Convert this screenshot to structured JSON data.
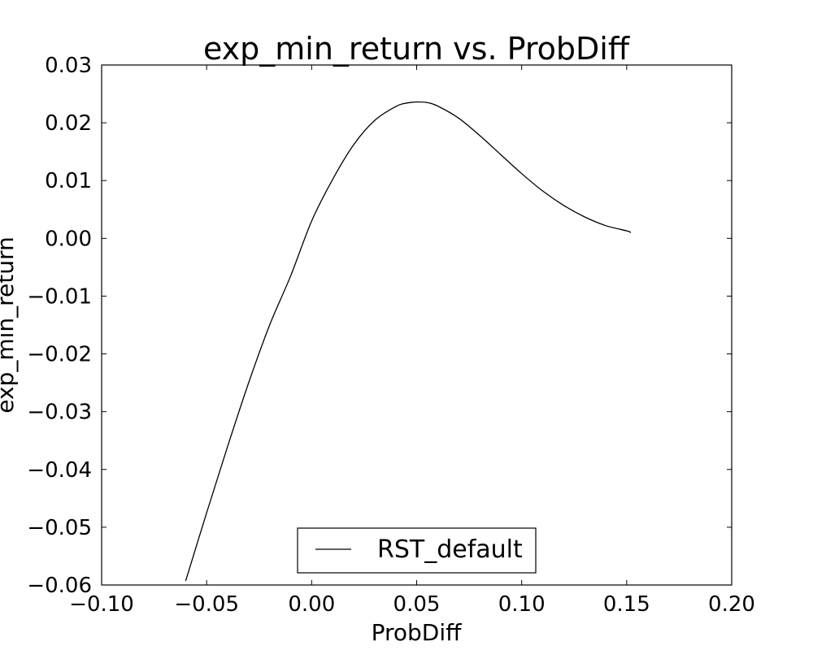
{
  "chart_data": {
    "type": "line",
    "title": "exp_min_return vs. ProbDiff",
    "xlabel": "ProbDiff",
    "ylabel": "exp_min_return",
    "xlim": [
      -0.1,
      0.2
    ],
    "ylim": [
      -0.06,
      0.03
    ],
    "x_ticks": [
      -0.1,
      -0.05,
      0.0,
      0.05,
      0.1,
      0.15,
      0.2
    ],
    "x_tick_labels": [
      "−0.10",
      "−0.05",
      "0.00",
      "0.05",
      "0.10",
      "0.15",
      "0.20"
    ],
    "y_ticks": [
      0.03,
      0.02,
      0.01,
      0.0,
      -0.01,
      -0.02,
      -0.03,
      -0.04,
      -0.05,
      -0.06
    ],
    "y_tick_labels": [
      "0.03",
      "0.02",
      "0.01",
      "0.00",
      "−0.01",
      "−0.02",
      "−0.03",
      "−0.04",
      "−0.05",
      "−0.06"
    ],
    "grid": false,
    "legend_position": "bottom-center",
    "series": [
      {
        "name": "RST_default",
        "color": "#000000",
        "x": [
          -0.06,
          -0.05,
          -0.04,
          -0.03,
          -0.02,
          -0.01,
          0.0,
          0.01,
          0.02,
          0.03,
          0.04,
          0.045,
          0.05,
          0.055,
          0.06,
          0.07,
          0.08,
          0.09,
          0.1,
          0.11,
          0.12,
          0.13,
          0.14,
          0.15,
          0.152
        ],
        "y": [
          -0.0593,
          -0.0475,
          -0.036,
          -0.025,
          -0.015,
          -0.0065,
          0.003,
          0.0102,
          0.0162,
          0.0204,
          0.0228,
          0.0234,
          0.0236,
          0.0235,
          0.0229,
          0.0208,
          0.0178,
          0.0145,
          0.0112,
          0.0082,
          0.0057,
          0.0037,
          0.0022,
          0.0013,
          0.001
        ]
      }
    ]
  }
}
